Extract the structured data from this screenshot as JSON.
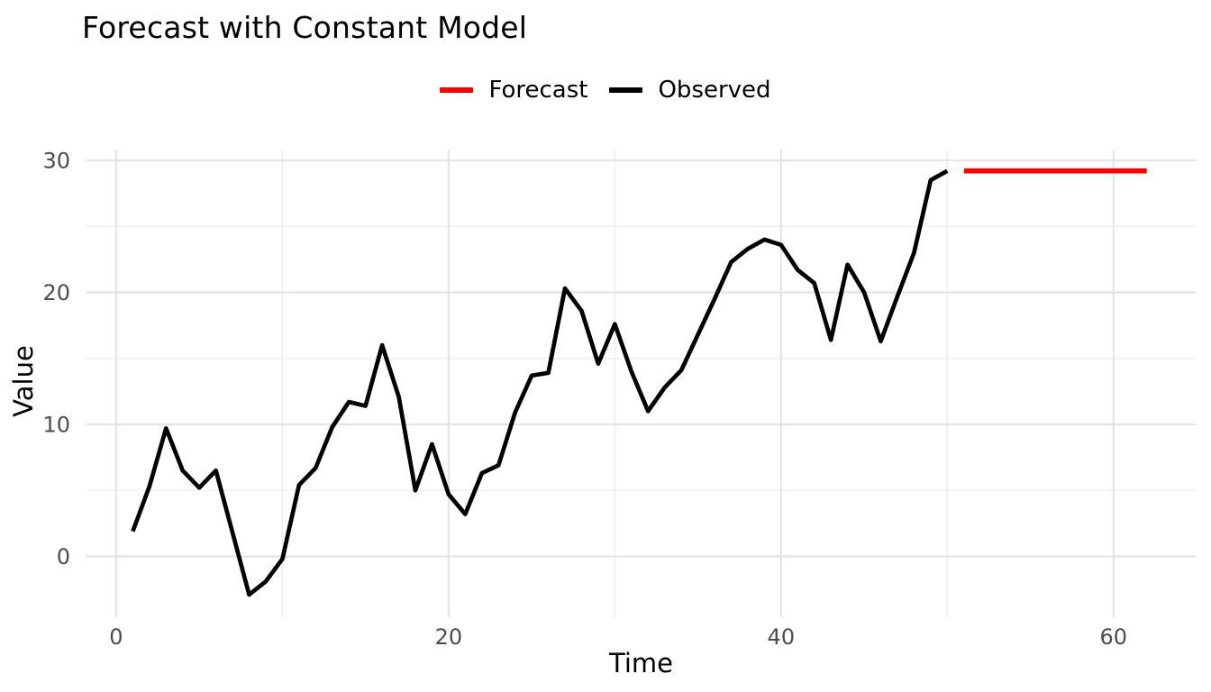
{
  "chart_data": {
    "type": "line",
    "title": "Forecast with Constant Model",
    "xlabel": "Time",
    "ylabel": "Value",
    "grid": true,
    "legend_position": "top-center",
    "legend": [
      {
        "label": "Forecast",
        "color": "#ff0000"
      },
      {
        "label": "Observed",
        "color": "#000000"
      }
    ],
    "x_ticks": [
      0,
      20,
      40,
      60
    ],
    "x_minor_ticks": [
      10,
      30,
      50
    ],
    "y_ticks": [
      0,
      10,
      20,
      30
    ],
    "y_minor_ticks": [
      5,
      15,
      25
    ],
    "xlim": [
      -1.84,
      65.0
    ],
    "ylim": [
      -4.61,
      30.82
    ],
    "series": [
      {
        "name": "Observed",
        "color": "#000000",
        "x": [
          1,
          2,
          3,
          4,
          5,
          6,
          7,
          8,
          9,
          10,
          11,
          12,
          13,
          14,
          15,
          16,
          17,
          18,
          19,
          20,
          21,
          22,
          23,
          24,
          25,
          26,
          27,
          28,
          29,
          30,
          31,
          32,
          33,
          34,
          35,
          36,
          37,
          38,
          39,
          40,
          41,
          42,
          43,
          44,
          45,
          46,
          47,
          48,
          49,
          50
        ],
        "y": [
          1.9,
          5.3,
          9.7,
          6.5,
          5.2,
          6.5,
          1.8,
          -2.9,
          -1.9,
          -0.2,
          5.4,
          6.7,
          9.8,
          11.7,
          11.4,
          16.0,
          12.1,
          5.0,
          8.5,
          4.7,
          3.2,
          6.3,
          6.9,
          10.9,
          13.7,
          13.9,
          20.3,
          18.6,
          14.6,
          17.6,
          14.0,
          11.0,
          12.8,
          14.1,
          16.8,
          19.5,
          22.3,
          23.3,
          24.0,
          23.6,
          21.7,
          20.7,
          16.4,
          22.1,
          20.0,
          16.3,
          19.7,
          23.0,
          28.5,
          29.2
        ]
      },
      {
        "name": "Forecast",
        "color": "#ff0000",
        "x": [
          51,
          52,
          53,
          54,
          55,
          56,
          57,
          58,
          59,
          60,
          61,
          62
        ],
        "y": [
          29.2,
          29.2,
          29.2,
          29.2,
          29.2,
          29.2,
          29.2,
          29.2,
          29.2,
          29.2,
          29.2,
          29.2
        ]
      }
    ],
    "styles": {
      "axis_text_color": "#4d4d4d",
      "major_grid_color": "#e4e4e4",
      "minor_grid_color": "#eeeeee",
      "background": "#ffffff"
    }
  }
}
